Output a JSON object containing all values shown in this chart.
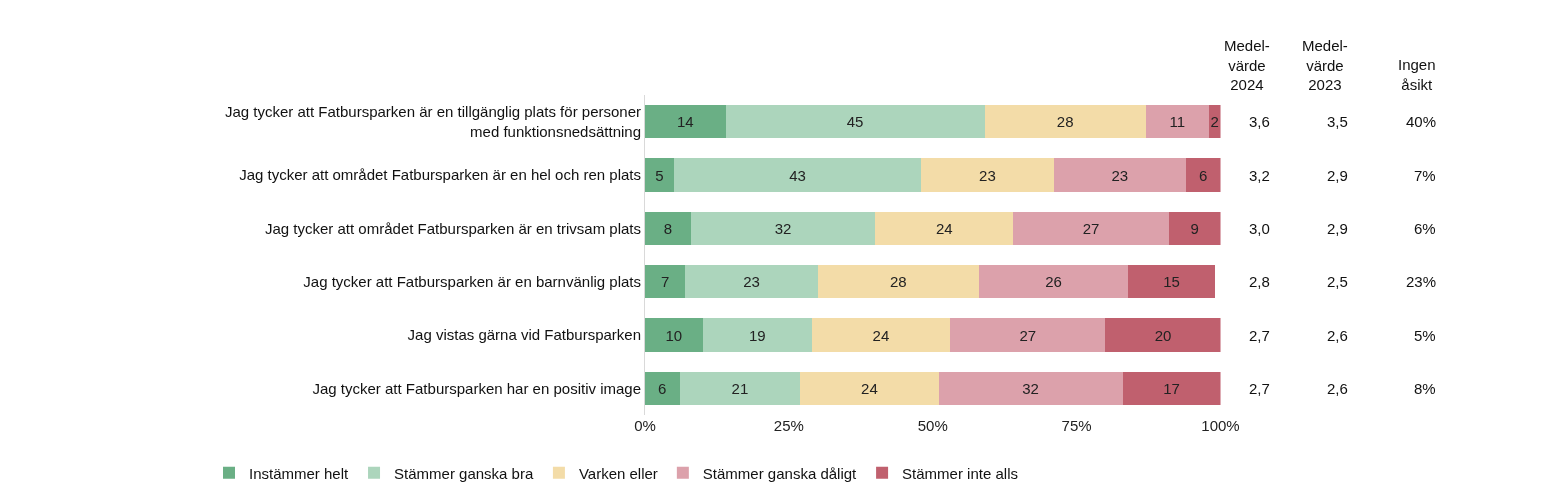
{
  "chart_data": {
    "type": "bar",
    "orientation": "horizontal",
    "stacked": true,
    "data_labels": true,
    "legend": "bottom",
    "categories": [
      "Jag tycker att Fatbursparken är en tillgänglig plats för personer\nmed funktionsnedsättning",
      "Jag tycker att området Fatbursparken är en hel och ren plats",
      "Jag tycker att området Fatbursparken är en trivsam plats",
      "Jag tycker att Fatbursparken är en barnvänlig plats",
      "Jag vistas gärna vid Fatbursparken",
      "Jag tycker att Fatbursparken har en positiv image"
    ],
    "series": [
      {
        "name": "Instämmer helt",
        "color": "#6aaf85",
        "values": [
          14,
          5,
          8,
          7,
          10,
          6
        ]
      },
      {
        "name": "Stämmer ganska bra",
        "color": "#acd5bc",
        "values": [
          45,
          43,
          32,
          23,
          19,
          21
        ]
      },
      {
        "name": "Varken eller",
        "color": "#f3dca8",
        "values": [
          28,
          23,
          24,
          28,
          24,
          24
        ]
      },
      {
        "name": "Stämmer ganska dåligt",
        "color": "#dca1ab",
        "values": [
          11,
          23,
          27,
          26,
          27,
          32
        ]
      },
      {
        "name": "Stämmer inte alls",
        "color": "#c0606e",
        "values": [
          2,
          6,
          9,
          15,
          20,
          17
        ]
      }
    ],
    "xlim": [
      0,
      100
    ],
    "xticks": [
      {
        "value": 0,
        "label": "0%"
      },
      {
        "value": 25,
        "label": "25%"
      },
      {
        "value": 50,
        "label": "50%"
      },
      {
        "value": 75,
        "label": "75%"
      },
      {
        "value": 100,
        "label": "100%"
      }
    ],
    "annotations": [
      "Medel-\nvärde\n2024",
      "3,6",
      "3,2",
      "3,0",
      "2,8",
      "2,7",
      "2,7",
      "Medel-\nvärde\n2023",
      "3,5",
      "2,9",
      "2,9",
      "2,5",
      "2,6",
      "2,6",
      "Ingen\nåsikt",
      "40%",
      "7%",
      "6%",
      "23%",
      "5%",
      "8%"
    ]
  }
}
